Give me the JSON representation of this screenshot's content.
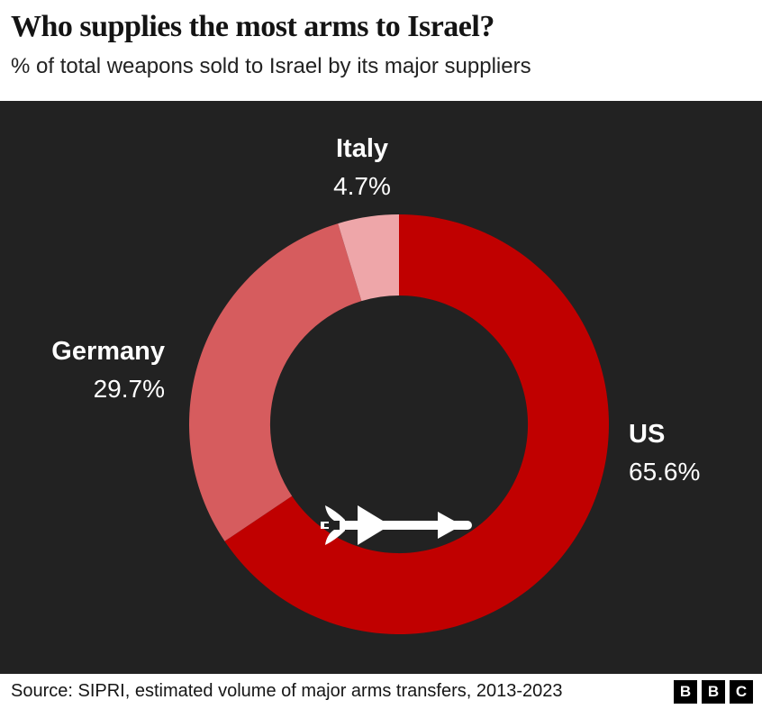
{
  "chart_data": {
    "type": "pie",
    "variant": "donut",
    "title": "Who supplies the most arms to Israel?",
    "subtitle": "% of total weapons sold to Israel by its major suppliers",
    "slices": [
      {
        "label": "US",
        "value": 65.6,
        "value_label": "65.6%",
        "color": "#c00000"
      },
      {
        "label": "Germany",
        "value": 29.7,
        "value_label": "29.7%",
        "color": "#d65c5e"
      },
      {
        "label": "Italy",
        "value": 4.7,
        "value_label": "4.7%",
        "color": "#eea6a9"
      }
    ],
    "start_angle_deg": 0,
    "direction": "clockwise",
    "inner_radius_ratio": 0.614,
    "panel_background": "#222222",
    "label_color": "#ffffff",
    "legend_position": "labels-around-chart",
    "center_icon": "missile-icon"
  },
  "footer": {
    "source": "Source: SIPRI, estimated volume of major arms transfers, 2013-2023",
    "logo_letters": [
      "B",
      "B",
      "C"
    ]
  }
}
